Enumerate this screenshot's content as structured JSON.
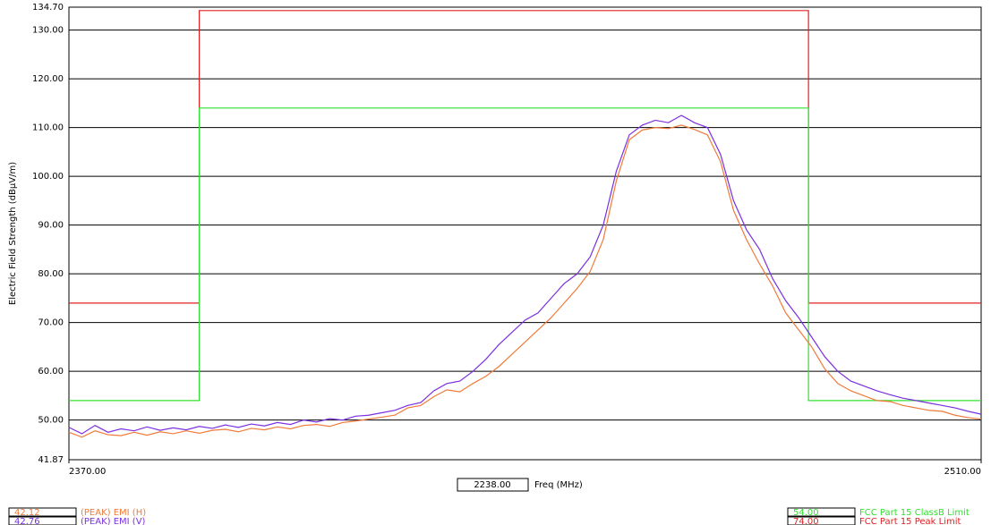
{
  "chart_data": {
    "type": "line",
    "y_label": "Electric Field Strength (dBµV/m)",
    "x_label": "Freq (MHz)",
    "cursor_freq": "2238.00",
    "xlim": [
      2370,
      2510
    ],
    "xticks": [
      {
        "value": 2370,
        "label": "2370.00"
      },
      {
        "value": 2510,
        "label": "2510.00"
      }
    ],
    "ylim": [
      41.87,
      134.7
    ],
    "yticks": [
      {
        "value": 41.87,
        "label": "41.87"
      },
      {
        "value": 50,
        "label": "50.00"
      },
      {
        "value": 60,
        "label": "60.00"
      },
      {
        "value": 70,
        "label": "70.00"
      },
      {
        "value": 80,
        "label": "80.00"
      },
      {
        "value": 90,
        "label": "90.00"
      },
      {
        "value": 100,
        "label": "100.00"
      },
      {
        "value": 110,
        "label": "110.00"
      },
      {
        "value": 120,
        "label": "120.00"
      },
      {
        "value": 130,
        "label": "130.00"
      },
      {
        "value": 134.7,
        "label": "134.70"
      }
    ],
    "grid": true,
    "series": [
      {
        "name": "FCC Part 15 Peak Limit",
        "readout": "74.00",
        "color": "#e02020",
        "x": [
          2370,
          2390,
          2390,
          2483.5,
          2483.5,
          2510
        ],
        "values": [
          74,
          74,
          134,
          134,
          74,
          74
        ]
      },
      {
        "name": "FCC Part 15 ClassB Limit",
        "readout": "54.00",
        "color": "#30e030",
        "x": [
          2370,
          2390,
          2390,
          2483.5,
          2483.5,
          2510
        ],
        "values": [
          54,
          54,
          114,
          114,
          54,
          54
        ]
      },
      {
        "name": "(PEAK) EMI (H)",
        "readout": "42.12",
        "color": "#f07a3a",
        "x": [
          2370,
          2372,
          2374,
          2376,
          2378,
          2380,
          2382,
          2384,
          2386,
          2388,
          2390,
          2392,
          2394,
          2396,
          2398,
          2400,
          2402,
          2404,
          2406,
          2408,
          2410,
          2412,
          2414,
          2416,
          2418,
          2420,
          2422,
          2424,
          2426,
          2428,
          2430,
          2432,
          2434,
          2436,
          2438,
          2440,
          2442,
          2444,
          2446,
          2448,
          2450,
          2452,
          2454,
          2456,
          2458,
          2460,
          2462,
          2464,
          2466,
          2468,
          2470,
          2472,
          2474,
          2476,
          2478,
          2480,
          2482,
          2484,
          2486,
          2488,
          2490,
          2492,
          2494,
          2496,
          2498,
          2500,
          2502,
          2504,
          2506,
          2508,
          2510
        ],
        "values": [
          47.5,
          46.5,
          47.8,
          47.0,
          46.8,
          47.5,
          46.9,
          47.6,
          47.2,
          47.8,
          47.3,
          47.9,
          48.1,
          47.6,
          48.3,
          48.0,
          48.6,
          48.2,
          48.9,
          49.1,
          48.7,
          49.5,
          49.8,
          50.2,
          50.6,
          51.0,
          52.5,
          53.0,
          54.8,
          56.2,
          55.8,
          57.5,
          59.0,
          61.0,
          63.5,
          66.0,
          68.5,
          71.0,
          74.0,
          77.0,
          80.5,
          87.0,
          99.0,
          107.5,
          109.5,
          110.0,
          109.8,
          110.5,
          109.6,
          108.5,
          103.0,
          93,
          87,
          82,
          77.5,
          72,
          68.5,
          65,
          60.5,
          57.5,
          56,
          55,
          54,
          53.8,
          53,
          52.5,
          52,
          51.8,
          51,
          50.5,
          50.2
        ]
      },
      {
        "name": "(PEAK) EMI (V)",
        "readout": "42.76",
        "color": "#7b2fe0",
        "x": [
          2370,
          2372,
          2374,
          2376,
          2378,
          2380,
          2382,
          2384,
          2386,
          2388,
          2390,
          2392,
          2394,
          2396,
          2398,
          2400,
          2402,
          2404,
          2406,
          2408,
          2410,
          2412,
          2414,
          2416,
          2418,
          2420,
          2422,
          2424,
          2426,
          2428,
          2430,
          2432,
          2434,
          2436,
          2438,
          2440,
          2442,
          2444,
          2446,
          2448,
          2450,
          2452,
          2454,
          2456,
          2458,
          2460,
          2462,
          2464,
          2466,
          2468,
          2470,
          2472,
          2474,
          2476,
          2478,
          2480,
          2482,
          2484,
          2486,
          2488,
          2490,
          2492,
          2494,
          2496,
          2498,
          2500,
          2502,
          2504,
          2506,
          2508,
          2510
        ],
        "values": [
          48.5,
          47.2,
          48.9,
          47.5,
          48.2,
          47.8,
          48.6,
          47.9,
          48.4,
          48.0,
          48.7,
          48.3,
          49.0,
          48.5,
          49.2,
          48.8,
          49.5,
          49.1,
          50.0,
          49.6,
          50.3,
          50.0,
          50.8,
          51.0,
          51.5,
          52.0,
          53.0,
          53.6,
          56.0,
          57.5,
          58.0,
          60,
          62.5,
          65.5,
          68,
          70.5,
          72,
          75,
          78,
          80,
          83.5,
          90,
          101,
          108.5,
          110.5,
          111.5,
          111,
          112.5,
          111,
          110,
          104.5,
          95,
          89,
          85,
          79,
          74.5,
          71,
          67,
          63,
          60,
          58,
          57,
          56,
          55.2,
          54.5,
          54,
          53.5,
          53,
          52.5,
          51.8,
          51.2
        ]
      }
    ]
  }
}
